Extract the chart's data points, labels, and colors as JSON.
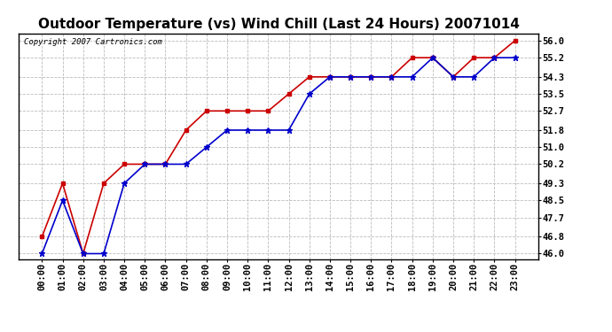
{
  "title": "Outdoor Temperature (vs) Wind Chill (Last 24 Hours) 20071014",
  "copyright_text": "Copyright 2007 Cartronics.com",
  "x_labels": [
    "00:00",
    "01:00",
    "02:00",
    "03:00",
    "04:00",
    "05:00",
    "06:00",
    "07:00",
    "08:00",
    "09:00",
    "10:00",
    "11:00",
    "12:00",
    "13:00",
    "14:00",
    "15:00",
    "16:00",
    "17:00",
    "18:00",
    "19:00",
    "20:00",
    "21:00",
    "22:00",
    "23:00"
  ],
  "temp_red": [
    46.8,
    49.3,
    46.0,
    49.3,
    50.2,
    50.2,
    50.2,
    51.8,
    52.7,
    52.7,
    52.7,
    52.7,
    53.5,
    54.3,
    54.3,
    54.3,
    54.3,
    54.3,
    55.2,
    55.2,
    54.3,
    55.2,
    55.2,
    56.0
  ],
  "temp_blue": [
    46.0,
    48.5,
    46.0,
    46.0,
    49.3,
    50.2,
    50.2,
    50.2,
    51.0,
    51.8,
    51.8,
    51.8,
    51.8,
    53.5,
    54.3,
    54.3,
    54.3,
    54.3,
    54.3,
    55.2,
    54.3,
    54.3,
    55.2,
    55.2
  ],
  "y_ticks": [
    46.0,
    46.8,
    47.7,
    48.5,
    49.3,
    50.2,
    51.0,
    51.8,
    52.7,
    53.5,
    54.3,
    55.2,
    56.0
  ],
  "y_min": 45.75,
  "y_max": 56.35,
  "red_color": "#cc0000",
  "blue_color": "#0000cc",
  "grid_color": "#bbbbbb",
  "bg_color": "#ffffff",
  "plot_bg_color": "#ffffff",
  "title_fontsize": 11,
  "tick_fontsize": 7.5
}
